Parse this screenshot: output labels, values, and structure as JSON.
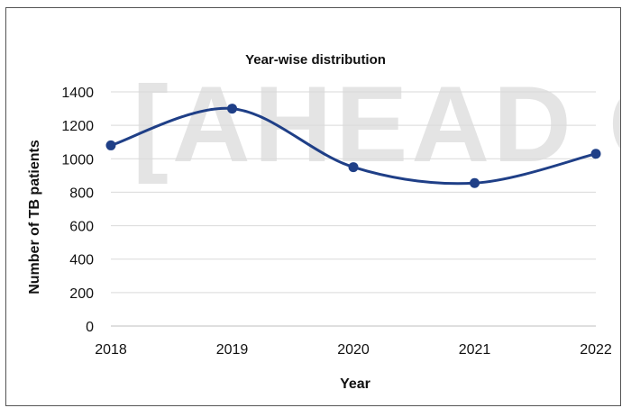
{
  "watermark_text": "[AHEAD O",
  "chart_data": {
    "type": "line",
    "smooth": true,
    "title": "Year-wise distribution",
    "xlabel": "Year",
    "ylabel": "Number of TB patients",
    "categories": [
      "2018",
      "2019",
      "2020",
      "2021",
      "2022"
    ],
    "series": [
      {
        "values": [
          1080,
          1300,
          950,
          855,
          1030
        ],
        "color": "#1f3f87"
      }
    ],
    "ylim": [
      0,
      1400
    ],
    "yticks": [
      0,
      200,
      400,
      600,
      800,
      1000,
      1200,
      1400
    ],
    "grid": true,
    "legend": "none"
  }
}
